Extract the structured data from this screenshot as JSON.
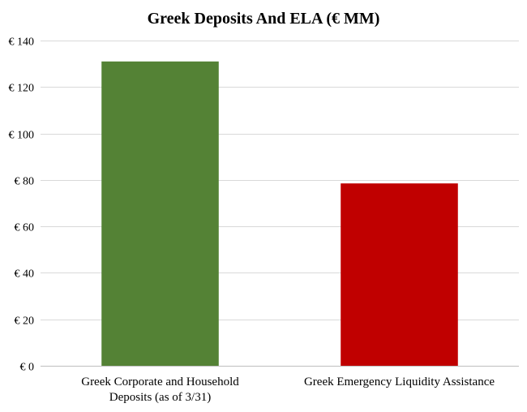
{
  "chart_data": {
    "type": "bar",
    "title": "Greek Deposits And ELA (€ MM)",
    "categories": [
      [
        "Greek Corporate and Household",
        "Deposits (as of 3/31)"
      ],
      [
        "Greek Emergency Liquidity Assistance"
      ]
    ],
    "values": [
      131,
      78.5
    ],
    "bar_colors": [
      "#548235",
      "#c00000"
    ],
    "ylim": [
      0,
      140
    ],
    "yticks": [
      0,
      20,
      40,
      60,
      80,
      100,
      120,
      140
    ],
    "ytick_labels": [
      "€ 0",
      "€ 20",
      "€ 40",
      "€ 60",
      "€ 80",
      "€ 100",
      "€ 120",
      "€ 140"
    ],
    "grid": true,
    "legend": "none",
    "xlabel": "",
    "ylabel": ""
  }
}
